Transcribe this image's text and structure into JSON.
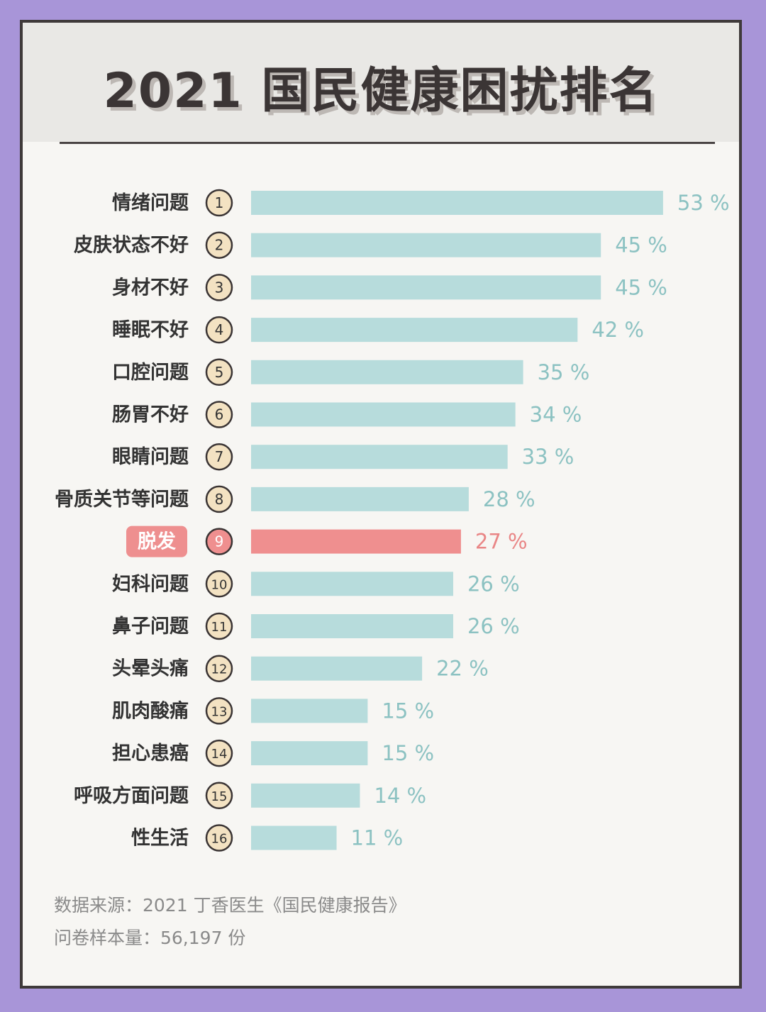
{
  "title": "2021 国民健康困扰排名",
  "chart_data": {
    "type": "bar",
    "orientation": "horizontal",
    "categories": [
      "情绪问题",
      "皮肤状态不好",
      "身材不好",
      "睡眠不好",
      "口腔问题",
      "肠胃不好",
      "眼睛问题",
      "骨质关节等问题",
      "脱发",
      "妇科问题",
      "鼻子问题",
      "头晕头痛",
      "肌肉酸痛",
      "担心患癌",
      "呼吸方面问题",
      "性生活"
    ],
    "ranks": [
      "1",
      "2",
      "3",
      "4",
      "5",
      "6",
      "7",
      "8",
      "9",
      "10",
      "11",
      "12",
      "13",
      "14",
      "15",
      "16"
    ],
    "values": [
      53,
      45,
      45,
      42,
      35,
      34,
      33,
      28,
      27,
      26,
      26,
      22,
      15,
      15,
      14,
      11
    ],
    "value_labels": [
      "53 %",
      "45 %",
      "45 %",
      "42 %",
      "35 %",
      "34 %",
      "33 %",
      "28 %",
      "27 %",
      "26 %",
      "26 %",
      "22 %",
      "15 %",
      "15 %",
      "14 %",
      "11 %"
    ],
    "highlight_index": 8,
    "colors": {
      "bar": "#b7dcdc",
      "bar_highlight": "#ef8f8f",
      "value_text": "#8cc2c2",
      "value_text_highlight": "#e98686",
      "label_text": "#333333",
      "label_highlight_bg": "#ee8f8f",
      "label_highlight_text": "#ffffff",
      "badge_fill": "#f3e2c2",
      "badge_stroke": "#3a3434"
    }
  },
  "footer": {
    "source": "数据来源：2021 丁香医生《国民健康报告》",
    "sample": "问卷样本量：56,197 份"
  }
}
